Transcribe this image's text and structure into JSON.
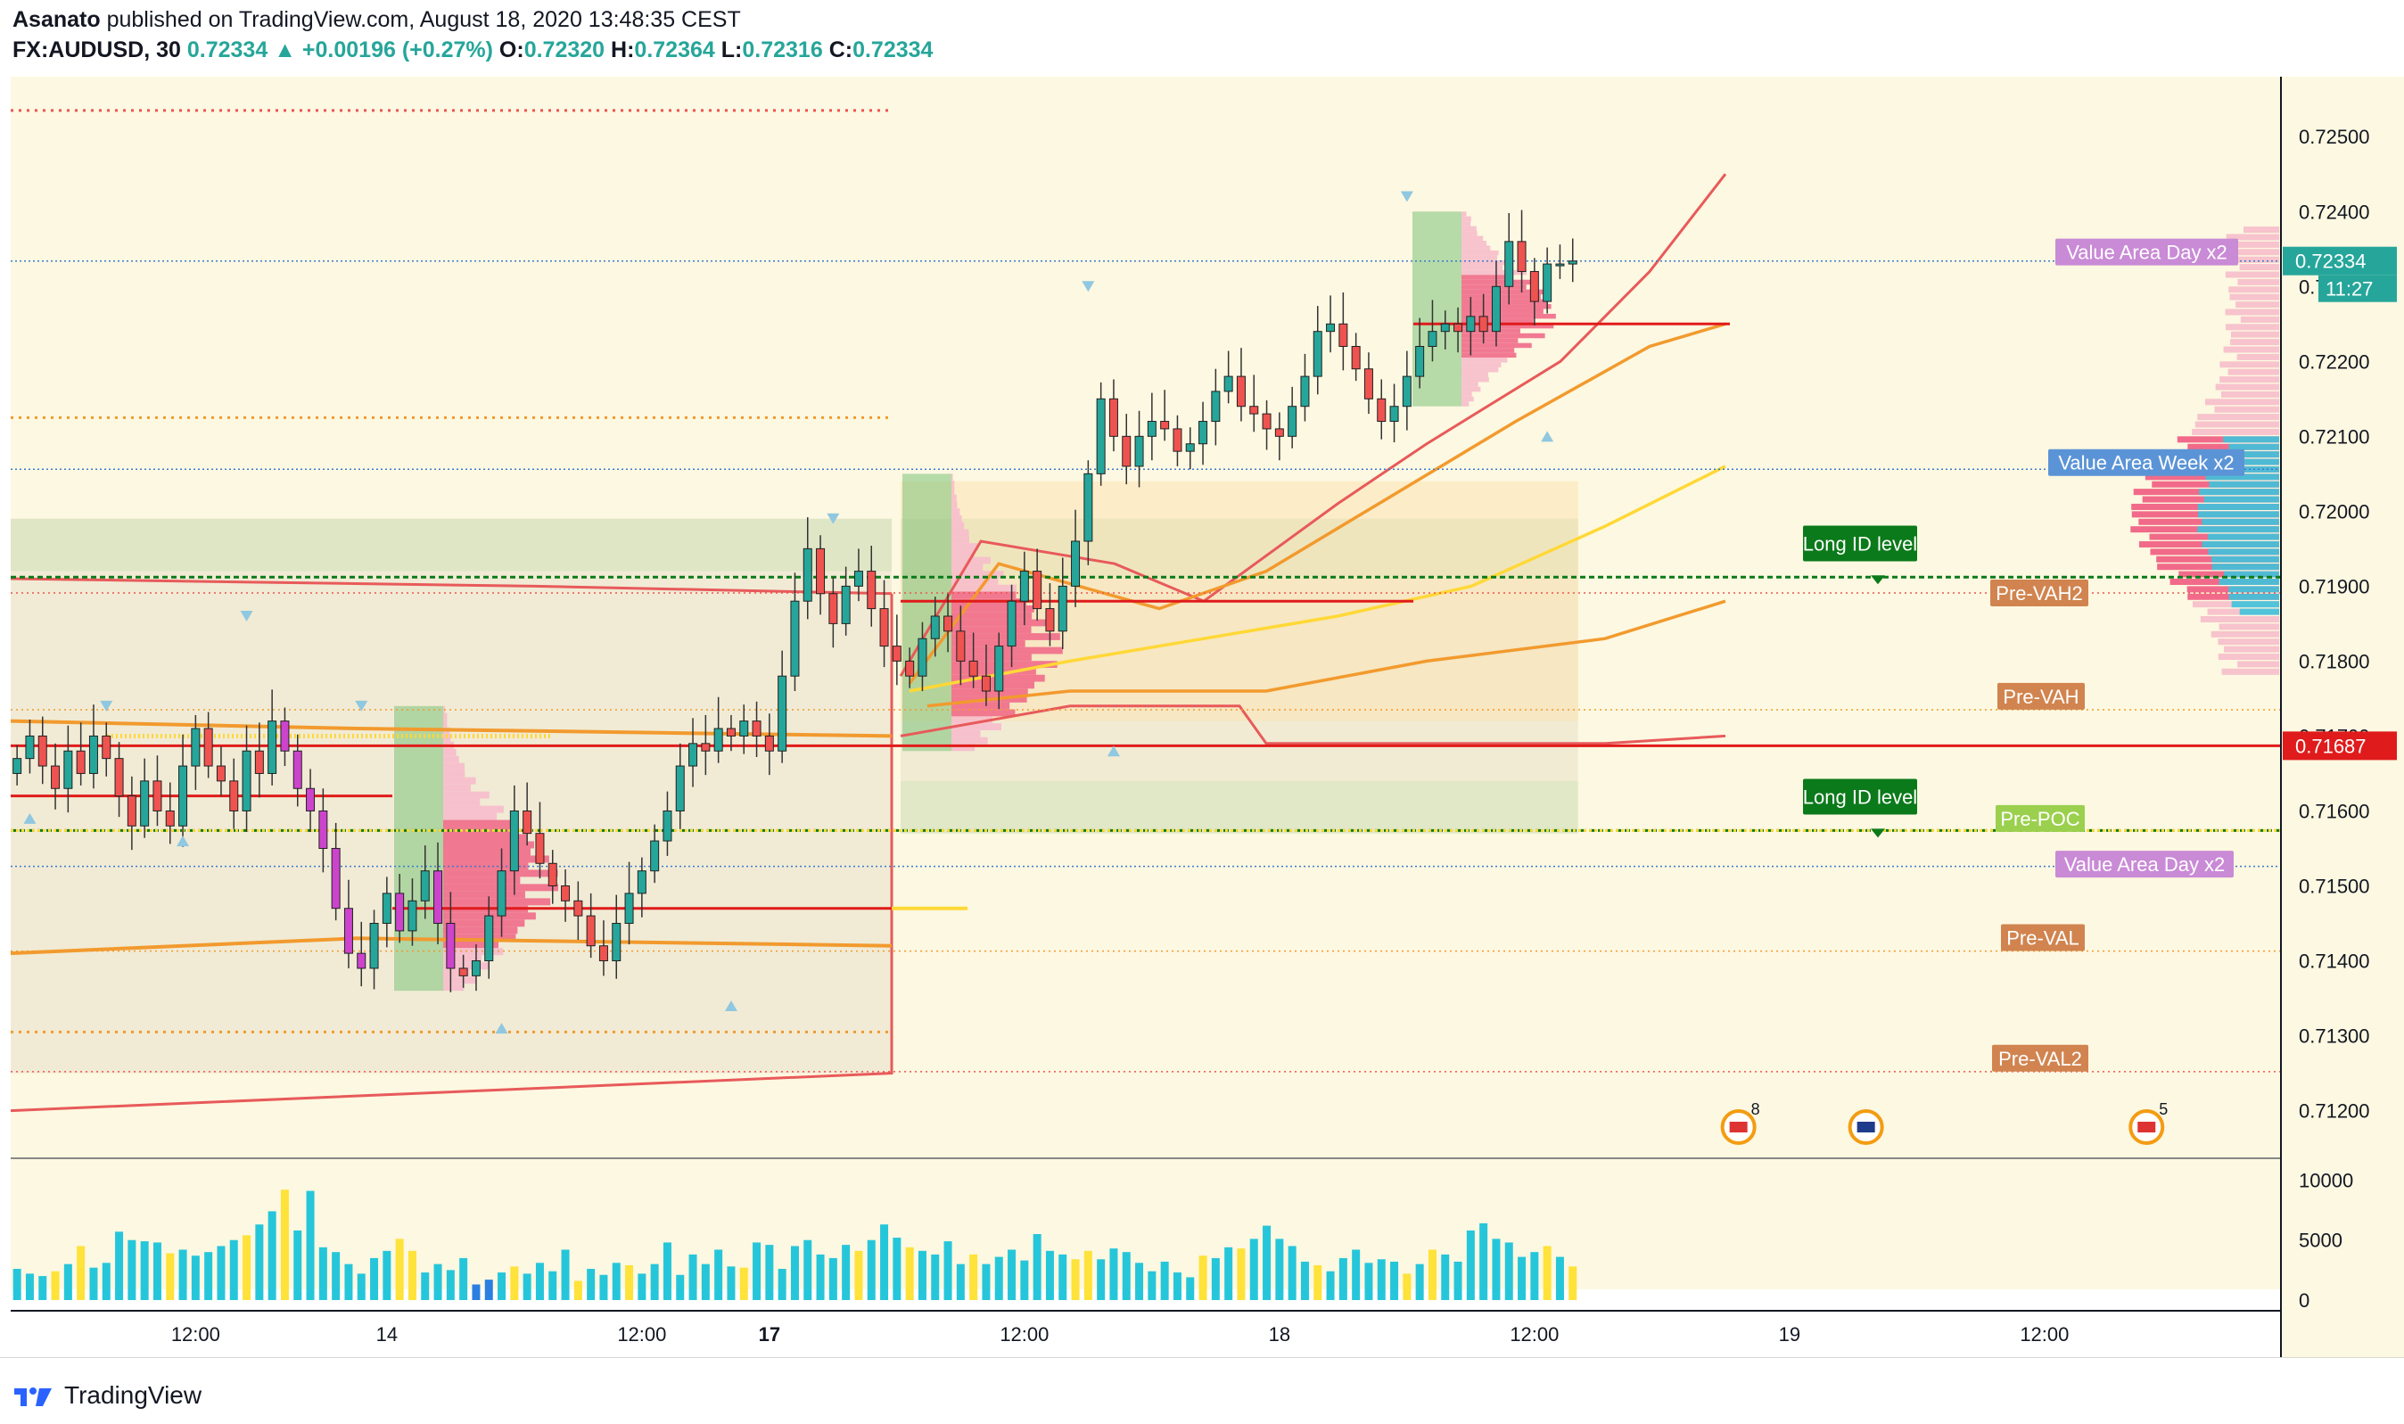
{
  "header": {
    "author": "Asanato",
    "published_text": "published on TradingView.com, August 18, 2020 13:48:35 CEST",
    "symbol": "FX:AUDUSD, 30",
    "last": "0.72334",
    "change": "+0.00196 (+0.27%)",
    "open_label": "O:",
    "open": "0.72320",
    "high_label": "H:",
    "high": "0.72364",
    "low_label": "L:",
    "low": "0.72316",
    "close_label": "C:",
    "close": "0.72334"
  },
  "footer": {
    "brand": "TradingView"
  },
  "colors": {
    "background": "#fdf8e1",
    "up_candle": "#26a69a",
    "down_candle": "#ef5350",
    "vwap_red": "#e85a5a",
    "orange": "#f29a2e",
    "yellow": "#ffd836",
    "green_level": "#0b7a1a",
    "price_tag": "#26a69a",
    "current_level_red": "#e01b1b"
  },
  "chart_data": {
    "type": "candlestick",
    "symbol": "FX:AUDUSD",
    "timeframe": "30",
    "ylim": [
      0.7114,
      0.7258
    ],
    "y_ticks": [
      "0.72500",
      "0.72400",
      "0.72300",
      "0.72200",
      "0.72100",
      "0.72000",
      "0.71900",
      "0.71800",
      "0.71700",
      "0.71600",
      "0.71500",
      "0.71400",
      "0.71300",
      "0.71200"
    ],
    "y_tick_values": [
      0.725,
      0.724,
      0.723,
      0.722,
      0.721,
      0.72,
      0.719,
      0.718,
      0.717,
      0.716,
      0.715,
      0.714,
      0.713,
      0.712
    ],
    "x_ticks": [
      {
        "label": "12:00",
        "bar": 14
      },
      {
        "label": "14",
        "bar": 29
      },
      {
        "label": "12:00",
        "bar": 49
      },
      {
        "label": "17",
        "bar": 59
      },
      {
        "label": "12:00",
        "bar": 79
      },
      {
        "label": "18",
        "bar": 99
      },
      {
        "label": "12:00",
        "bar": 119
      },
      {
        "label": "19",
        "bar": 139
      },
      {
        "label": "12:00",
        "bar": 159
      }
    ],
    "bars_visible": 178,
    "last_bar_index": 122,
    "closes": [
      0.7167,
      0.717,
      0.7166,
      0.7163,
      0.7168,
      0.7165,
      0.717,
      0.7167,
      0.7162,
      0.7158,
      0.7164,
      0.716,
      0.7158,
      0.7166,
      0.7171,
      0.7166,
      0.7164,
      0.716,
      0.7168,
      0.7165,
      0.7172,
      0.7168,
      0.7163,
      0.716,
      0.7155,
      0.7147,
      0.7141,
      0.7139,
      0.7145,
      0.7149,
      0.7144,
      0.7148,
      0.7152,
      0.7145,
      0.7139,
      0.7138,
      0.714,
      0.7146,
      0.7152,
      0.716,
      0.7157,
      0.7153,
      0.715,
      0.7148,
      0.7146,
      0.7142,
      0.714,
      0.7145,
      0.7149,
      0.7152,
      0.7156,
      0.716,
      0.7166,
      0.7169,
      0.7168,
      0.7171,
      0.717,
      0.7172,
      0.717,
      0.7168,
      0.7178,
      0.7188,
      0.7195,
      0.7189,
      0.7185,
      0.719,
      0.7192,
      0.7187,
      0.7182,
      0.718,
      0.7178,
      0.7183,
      0.7186,
      0.7184,
      0.718,
      0.7178,
      0.7176,
      0.7182,
      0.7188,
      0.7192,
      0.7187,
      0.7184,
      0.719,
      0.7196,
      0.7205,
      0.7215,
      0.721,
      0.7206,
      0.721,
      0.7212,
      0.7211,
      0.7208,
      0.7209,
      0.7212,
      0.7216,
      0.7218,
      0.7214,
      0.7213,
      0.7211,
      0.721,
      0.7214,
      0.7218,
      0.7224,
      0.7225,
      0.7222,
      0.7219,
      0.7215,
      0.7212,
      0.7214,
      0.7218,
      0.7222,
      0.7224,
      0.7225,
      0.7224,
      0.7226,
      0.7224,
      0.723,
      0.7236,
      0.7232,
      0.7228,
      0.7233,
      0.7233,
      0.72334
    ],
    "current_price_label": "0.72334",
    "current_time_label": "11:27",
    "level_0_71687": "0.71687",
    "volume_ticks": [
      "10000",
      "5000",
      "0"
    ],
    "volume_tick_values": [
      10000,
      5000,
      0
    ],
    "volume_max": 11000,
    "volumes": [
      2600,
      2200,
      2000,
      2400,
      3000,
      4500,
      2700,
      3100,
      5700,
      5000,
      4900,
      4800,
      3900,
      4200,
      3700,
      4000,
      4500,
      5000,
      5400,
      6300,
      7400,
      9200,
      5800,
      9100,
      4400,
      4000,
      3000,
      2200,
      3500,
      4100,
      5100,
      4100,
      2300,
      3000,
      2500,
      3500,
      1300,
      1700,
      2300,
      2800,
      2200,
      3100,
      2400,
      4200,
      1600,
      2600,
      2100,
      3100,
      2900,
      2200,
      3000,
      4800,
      2100,
      3800,
      3000,
      4200,
      2800,
      2700,
      4800,
      4600,
      2600,
      4500,
      5000,
      3800,
      3500,
      4600,
      4100,
      5000,
      6300,
      5200,
      4400,
      4100,
      3800,
      4900,
      3000,
      3800,
      3000,
      3600,
      4200,
      3300,
      5500,
      4100,
      3800,
      3400,
      4100,
      3400,
      4300,
      4000,
      3100,
      2400,
      3200,
      2300,
      1900,
      3700,
      3500,
      4400,
      4300,
      5100,
      6200,
      5100,
      4500,
      3200,
      2900,
      2400,
      3500,
      4200,
      3100,
      3400,
      3200,
      2200,
      3000,
      4200,
      3800,
      3200,
      5800,
      6400,
      5100,
      4800,
      3600,
      4000,
      4500,
      3600,
      2800
    ],
    "labels": {
      "value_area_day_x2": "Value Area Day x2",
      "value_area_week_x2": "Value Area Week x2",
      "long_id_level": "Long ID level",
      "pre_vah2": "Pre-VAH2",
      "pre_vah": "Pre-VAH",
      "pre_poc": "Pre-POC",
      "pre_val": "Pre-VAL",
      "pre_val2": "Pre-VAL2"
    },
    "levels": {
      "long_id_upper": 0.71912,
      "long_id_lower": 0.71574,
      "pre_vah2": 0.71891,
      "pre_vah": 0.71735,
      "pre_poc": 0.71574,
      "pre_val": 0.71413,
      "pre_val2": 0.71252,
      "value_area_day_x2": 0.72334,
      "value_area_week_x2": 0.72056,
      "value_area_day_x2_lower": 0.71526,
      "current_red_level": 0.71687
    },
    "event_badges": [
      {
        "country": "US",
        "count": "8",
        "bar": 135
      },
      {
        "country": "AU",
        "count": "",
        "bar": 145
      },
      {
        "country": "US",
        "count": "5",
        "bar": 167
      }
    ]
  }
}
